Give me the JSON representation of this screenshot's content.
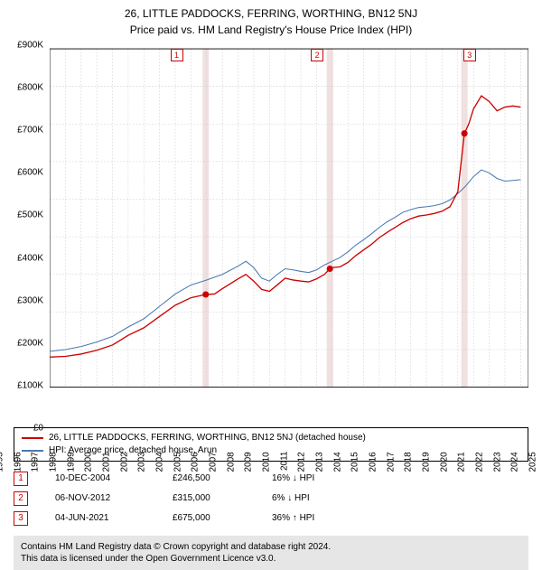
{
  "title_line1": "26, LITTLE PADDOCKS, FERRING, WORTHING, BN12 5NJ",
  "title_line2": "Price paid vs. HM Land Registry's House Price Index (HPI)",
  "chart": {
    "type": "line",
    "background_color": "#ffffff",
    "grid_color": "#cccccc",
    "grid_dash": "2,2",
    "axis_color": "#000000",
    "ylim": [
      0,
      900000
    ],
    "ytick_step": 100000,
    "yticks": [
      "£0",
      "£100K",
      "£200K",
      "£300K",
      "£400K",
      "£500K",
      "£600K",
      "£700K",
      "£800K",
      "£900K"
    ],
    "xlim": [
      1995,
      2025.5
    ],
    "xticks": [
      1995,
      1996,
      1997,
      1998,
      1999,
      2000,
      2001,
      2002,
      2003,
      2004,
      2005,
      2006,
      2007,
      2008,
      2009,
      2010,
      2011,
      2012,
      2013,
      2014,
      2015,
      2016,
      2017,
      2018,
      2019,
      2020,
      2021,
      2022,
      2023,
      2024,
      2025
    ],
    "label_fontsize": 10,
    "series": {
      "subject": {
        "color": "#cc0000",
        "width": 1.5,
        "points": [
          [
            1995,
            80000
          ],
          [
            1996,
            82000
          ],
          [
            1997,
            88000
          ],
          [
            1998,
            98000
          ],
          [
            1999,
            112000
          ],
          [
            2000,
            138000
          ],
          [
            2001,
            158000
          ],
          [
            2002,
            188000
          ],
          [
            2003,
            218000
          ],
          [
            2004,
            238000
          ],
          [
            2004.94,
            246500
          ],
          [
            2005.5,
            248000
          ],
          [
            2006,
            262000
          ],
          [
            2007,
            288000
          ],
          [
            2007.5,
            300000
          ],
          [
            2008,
            282000
          ],
          [
            2008.5,
            260000
          ],
          [
            2009,
            255000
          ],
          [
            2009.5,
            272000
          ],
          [
            2010,
            290000
          ],
          [
            2010.5,
            285000
          ],
          [
            2011,
            282000
          ],
          [
            2011.5,
            280000
          ],
          [
            2012,
            288000
          ],
          [
            2012.5,
            300000
          ],
          [
            2012.85,
            315000
          ],
          [
            2013,
            318000
          ],
          [
            2013.5,
            320000
          ],
          [
            2014,
            332000
          ],
          [
            2014.5,
            350000
          ],
          [
            2015,
            365000
          ],
          [
            2015.5,
            380000
          ],
          [
            2016,
            398000
          ],
          [
            2016.5,
            412000
          ],
          [
            2017,
            425000
          ],
          [
            2017.5,
            438000
          ],
          [
            2018,
            448000
          ],
          [
            2018.5,
            455000
          ],
          [
            2019,
            458000
          ],
          [
            2019.5,
            462000
          ],
          [
            2020,
            468000
          ],
          [
            2020.5,
            480000
          ],
          [
            2021,
            520000
          ],
          [
            2021.42,
            675000
          ],
          [
            2021.7,
            700000
          ],
          [
            2022,
            740000
          ],
          [
            2022.5,
            775000
          ],
          [
            2023,
            760000
          ],
          [
            2023.5,
            735000
          ],
          [
            2024,
            745000
          ],
          [
            2024.5,
            748000
          ],
          [
            2025,
            745000
          ]
        ]
      },
      "hpi": {
        "color": "#4a7ab0",
        "width": 1.2,
        "points": [
          [
            1995,
            95000
          ],
          [
            1996,
            100000
          ],
          [
            1997,
            108000
          ],
          [
            1998,
            120000
          ],
          [
            1999,
            135000
          ],
          [
            2000,
            160000
          ],
          [
            2001,
            182000
          ],
          [
            2002,
            215000
          ],
          [
            2003,
            248000
          ],
          [
            2004,
            272000
          ],
          [
            2005,
            285000
          ],
          [
            2006,
            300000
          ],
          [
            2007,
            322000
          ],
          [
            2007.5,
            335000
          ],
          [
            2008,
            318000
          ],
          [
            2008.5,
            290000
          ],
          [
            2009,
            282000
          ],
          [
            2009.5,
            300000
          ],
          [
            2010,
            315000
          ],
          [
            2010.5,
            312000
          ],
          [
            2011,
            308000
          ],
          [
            2011.5,
            305000
          ],
          [
            2012,
            312000
          ],
          [
            2012.5,
            325000
          ],
          [
            2013,
            335000
          ],
          [
            2013.5,
            345000
          ],
          [
            2014,
            360000
          ],
          [
            2014.5,
            378000
          ],
          [
            2015,
            392000
          ],
          [
            2015.5,
            408000
          ],
          [
            2016,
            425000
          ],
          [
            2016.5,
            440000
          ],
          [
            2017,
            452000
          ],
          [
            2017.5,
            465000
          ],
          [
            2018,
            472000
          ],
          [
            2018.5,
            478000
          ],
          [
            2019,
            480000
          ],
          [
            2019.5,
            483000
          ],
          [
            2020,
            488000
          ],
          [
            2020.5,
            498000
          ],
          [
            2021,
            515000
          ],
          [
            2021.5,
            535000
          ],
          [
            2022,
            560000
          ],
          [
            2022.5,
            578000
          ],
          [
            2023,
            570000
          ],
          [
            2023.5,
            555000
          ],
          [
            2024,
            548000
          ],
          [
            2024.5,
            550000
          ],
          [
            2025,
            552000
          ]
        ]
      }
    },
    "sale_markers": [
      {
        "n": "1",
        "x": 2004.94,
        "y": 246500,
        "color": "#cc0000"
      },
      {
        "n": "2",
        "x": 2012.85,
        "y": 315000,
        "color": "#cc0000"
      },
      {
        "n": "3",
        "x": 2021.42,
        "y": 675000,
        "color": "#cc0000"
      }
    ],
    "marker_band_color": "#f1e0e0"
  },
  "legend": {
    "items": [
      {
        "color": "#cc0000",
        "label": "26, LITTLE PADDOCKS, FERRING, WORTHING, BN12 5NJ (detached house)"
      },
      {
        "color": "#4a7ab0",
        "label": "HPI: Average price, detached house, Arun"
      }
    ]
  },
  "sales": [
    {
      "n": "1",
      "date": "10-DEC-2004",
      "price": "£246,500",
      "delta": "16% ↓ HPI",
      "badge_color": "#cc0000"
    },
    {
      "n": "2",
      "date": "06-NOV-2012",
      "price": "£315,000",
      "delta": "6% ↓ HPI",
      "badge_color": "#cc0000"
    },
    {
      "n": "3",
      "date": "04-JUN-2021",
      "price": "£675,000",
      "delta": "36% ↑ HPI",
      "badge_color": "#cc0000"
    }
  ],
  "footer_line1": "Contains HM Land Registry data © Crown copyright and database right 2024.",
  "footer_line2": "This data is licensed under the Open Government Licence v3.0."
}
